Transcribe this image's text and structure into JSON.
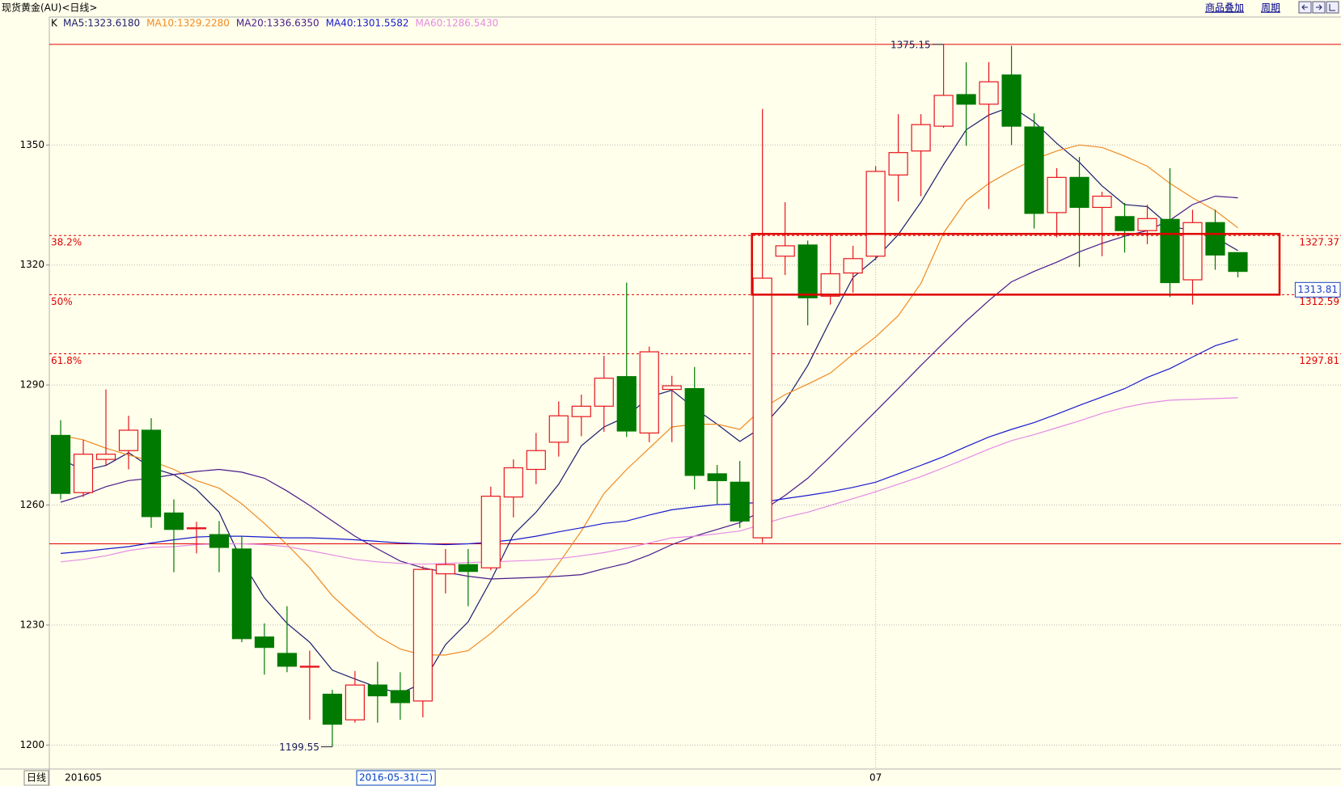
{
  "chart_data": {
    "type": "candlestick",
    "title": "现货黄金(AU)<日线>",
    "indicator": "K",
    "toolbar": [
      "商品叠加",
      "周期"
    ],
    "period": "日线",
    "cursor_label": "2016-05-31(二)",
    "categories": [
      null,
      "201605",
      null,
      null,
      null,
      null,
      null,
      null,
      null,
      null,
      null,
      null,
      null,
      null,
      null,
      null,
      null,
      null,
      null,
      null,
      null,
      null,
      null,
      null,
      null,
      null,
      null,
      null,
      null,
      null,
      null,
      null,
      null,
      null,
      null,
      null,
      "07",
      null,
      null,
      null,
      null,
      null,
      null,
      null,
      null,
      null,
      null,
      null,
      null,
      null,
      null,
      null,
      null
    ],
    "ylim": [
      1194,
      1382
    ],
    "yticks": [
      1200,
      1230,
      1260,
      1290,
      1320,
      1350
    ],
    "grid": true,
    "up_color": "#e8141e",
    "down_color": "#007a00",
    "open": [
      1277.4,
      1263.1,
      1271.4,
      1273.6,
      1278.7,
      1258.0,
      1254.1,
      1252.6,
      1249.0,
      1227.0,
      1222.9,
      1219.5,
      1212.7,
      1206.3,
      1215.0,
      1213.6,
      1211.0,
      1242.8,
      1245.1,
      1244.3,
      1262.0,
      1268.9,
      1275.7,
      1282.1,
      1284.7,
      1292.1,
      1278.0,
      1288.9,
      1289.1,
      1267.8,
      1265.7,
      1251.8,
      1322.2,
      1325.0,
      1312.2,
      1318.0,
      1322.2,
      1342.5,
      1348.5,
      1354.7,
      1362.6,
      1360.2,
      1367.5,
      1354.5,
      1333.1,
      1341.9,
      1334.4,
      1332.1,
      1328.6,
      1331.4,
      1316.3,
      1330.6,
      1323.1
    ],
    "high": [
      1281.2,
      1276.3,
      1288.9,
      1282.3,
      1281.7,
      1261.4,
      1255.8,
      1256.0,
      1252.2,
      1230.4,
      1234.7,
      1223.6,
      1213.8,
      1218.5,
      1220.8,
      1218.2,
      1244.7,
      1249.0,
      1249.0,
      1264.6,
      1271.4,
      1278.0,
      1285.9,
      1287.6,
      1297.3,
      1315.6,
      1299.6,
      1292.3,
      1294.5,
      1270.0,
      1271.0,
      1359.0,
      1335.7,
      1326.1,
      1327.6,
      1324.8,
      1344.7,
      1357.7,
      1357.7,
      1375.15,
      1370.7,
      1370.7,
      1374.8,
      1357.9,
      1344.2,
      1347.0,
      1338.3,
      1335.5,
      1335.1,
      1344.2,
      1333.8,
      1333.8,
      1323.1
    ],
    "low": [
      1261.4,
      1262.0,
      1269.9,
      1268.9,
      1254.3,
      1243.2,
      1247.9,
      1243.2,
      1225.7,
      1217.6,
      1218.2,
      1206.3,
      1199.55,
      1205.6,
      1205.6,
      1206.3,
      1206.9,
      1237.9,
      1234.7,
      1243.7,
      1256.9,
      1265.2,
      1272.1,
      1277.2,
      1278.3,
      1277.0,
      1275.7,
      1275.7,
      1263.9,
      1260.3,
      1254.3,
      1250.5,
      1317.5,
      1304.9,
      1310.1,
      1313.1,
      1321.2,
      1335.9,
      1337.2,
      1354.3,
      1349.8,
      1334.0,
      1350.0,
      1329.1,
      1326.9,
      1319.5,
      1322.2,
      1323.1,
      1325.2,
      1312.0,
      1310.1,
      1318.8,
      1316.9
    ],
    "close": [
      1262.9,
      1272.7,
      1272.7,
      1278.7,
      1257.1,
      1253.9,
      1254.3,
      1249.4,
      1226.6,
      1224.4,
      1219.7,
      1219.7,
      1205.2,
      1215.0,
      1212.3,
      1210.6,
      1243.9,
      1245.1,
      1243.4,
      1262.2,
      1269.3,
      1273.6,
      1282.3,
      1284.7,
      1291.7,
      1278.5,
      1298.3,
      1289.8,
      1267.4,
      1266.1,
      1256.0,
      1316.7,
      1324.8,
      1311.8,
      1317.8,
      1321.6,
      1343.4,
      1348.1,
      1355.1,
      1362.4,
      1360.2,
      1365.8,
      1354.7,
      1332.9,
      1341.9,
      1334.4,
      1337.2,
      1328.6,
      1331.6,
      1315.6,
      1330.6,
      1322.5,
      1318.4
    ],
    "series": [
      {
        "name": "MA5:1323.6180",
        "color": "#1c1c70",
        "values": [
          1271.6,
          1268.6,
          1269.9,
          1273.1,
          1269.3,
          1267.6,
          1263.9,
          1258.2,
          1246.0,
          1236.8,
          1230.4,
          1225.7,
          1218.7,
          1216.5,
          1214.4,
          1212.9,
          1215.5,
          1225.1,
          1230.8,
          1241.1,
          1252.6,
          1258.2,
          1265.2,
          1274.8,
          1279.5,
          1282.1,
          1287.0,
          1288.7,
          1284.2,
          1280.2,
          1275.9,
          1279.5,
          1285.9,
          1294.9,
          1306.2,
          1316.9,
          1321.6,
          1327.6,
          1335.7,
          1345.1,
          1353.8,
          1357.5,
          1359.6,
          1355.8,
          1350.4,
          1345.7,
          1339.8,
          1335.1,
          1334.6,
          1329.7,
          1328.6,
          1326.9,
          1323.6
        ]
      },
      {
        "name": "MA10:1329.2280",
        "color": "#f08a24",
        "values": [
          1277.4,
          1276.3,
          1274.2,
          1272.5,
          1271.0,
          1268.9,
          1266.1,
          1264.2,
          1260.3,
          1255.4,
          1250.1,
          1244.3,
          1237.3,
          1232.1,
          1227.2,
          1224.0,
          1222.5,
          1222.5,
          1223.6,
          1227.9,
          1233.0,
          1237.9,
          1245.4,
          1253.5,
          1262.9,
          1268.9,
          1274.2,
          1279.5,
          1280.2,
          1280.2,
          1278.9,
          1284.2,
          1287.6,
          1290.2,
          1293.0,
          1297.7,
          1302.0,
          1307.3,
          1315.4,
          1328.0,
          1336.1,
          1340.4,
          1343.6,
          1346.4,
          1348.5,
          1350.0,
          1349.4,
          1347.2,
          1344.7,
          1340.4,
          1336.8,
          1333.6,
          1329.3
        ]
      },
      {
        "name": "MA20:1336.6350",
        "color": "#4a1a8c",
        "values": [
          1260.7,
          1262.4,
          1264.6,
          1266.1,
          1266.7,
          1267.6,
          1268.4,
          1268.9,
          1268.2,
          1266.7,
          1263.5,
          1259.9,
          1256.0,
          1252.2,
          1249.0,
          1246.0,
          1244.3,
          1243.2,
          1242.2,
          1241.5,
          1241.7,
          1241.9,
          1242.2,
          1242.6,
          1244.1,
          1245.4,
          1247.5,
          1250.1,
          1252.2,
          1253.9,
          1255.6,
          1258.6,
          1262.4,
          1266.7,
          1272.1,
          1277.8,
          1283.4,
          1289.1,
          1294.9,
          1300.5,
          1306.0,
          1311.1,
          1315.8,
          1318.4,
          1320.7,
          1323.3,
          1325.4,
          1327.2,
          1328.6,
          1331.2,
          1335.1,
          1337.2,
          1336.8
        ]
      },
      {
        "name": "MA40:1301.5582",
        "color": "#1a1ad0",
        "values": [
          1247.9,
          1248.4,
          1249.0,
          1249.6,
          1250.5,
          1251.3,
          1252.0,
          1252.2,
          1252.2,
          1252.0,
          1251.8,
          1251.8,
          1251.6,
          1251.3,
          1250.9,
          1250.5,
          1250.3,
          1250.1,
          1250.3,
          1250.7,
          1251.3,
          1252.2,
          1253.3,
          1254.3,
          1255.4,
          1256.0,
          1257.5,
          1258.8,
          1259.5,
          1260.1,
          1260.3,
          1260.7,
          1261.6,
          1262.4,
          1263.3,
          1264.4,
          1265.7,
          1267.8,
          1269.9,
          1272.1,
          1274.6,
          1277.0,
          1278.9,
          1280.6,
          1282.7,
          1284.9,
          1287.0,
          1289.1,
          1291.9,
          1294.1,
          1297.0,
          1299.8,
          1301.5
        ]
      },
      {
        "name": "MA60:1286.5430",
        "color": "#e58ae5",
        "values": [
          1245.8,
          1246.4,
          1247.3,
          1248.6,
          1249.4,
          1249.6,
          1250.1,
          1250.3,
          1250.3,
          1250.1,
          1249.6,
          1248.6,
          1247.5,
          1246.4,
          1245.8,
          1245.4,
          1245.2,
          1245.4,
          1245.6,
          1245.8,
          1246.0,
          1246.2,
          1246.6,
          1247.3,
          1248.1,
          1249.2,
          1250.5,
          1251.8,
          1252.2,
          1252.8,
          1253.5,
          1255.2,
          1256.9,
          1258.2,
          1259.9,
          1261.6,
          1263.3,
          1265.2,
          1267.1,
          1269.3,
          1271.6,
          1274.0,
          1276.1,
          1277.6,
          1279.3,
          1281.0,
          1282.9,
          1284.4,
          1285.5,
          1286.2,
          1286.4,
          1286.6,
          1286.8
        ]
      }
    ],
    "high_label": 1375.15,
    "low_label": 1199.55,
    "support_line": 1250.3,
    "fib_levels": [
      {
        "label": "38.2%",
        "value": 1327.37
      },
      {
        "label": "50%",
        "value": 1312.59
      },
      {
        "label": "61.8%",
        "value": 1297.81
      }
    ],
    "last_price": 1313.81
  }
}
